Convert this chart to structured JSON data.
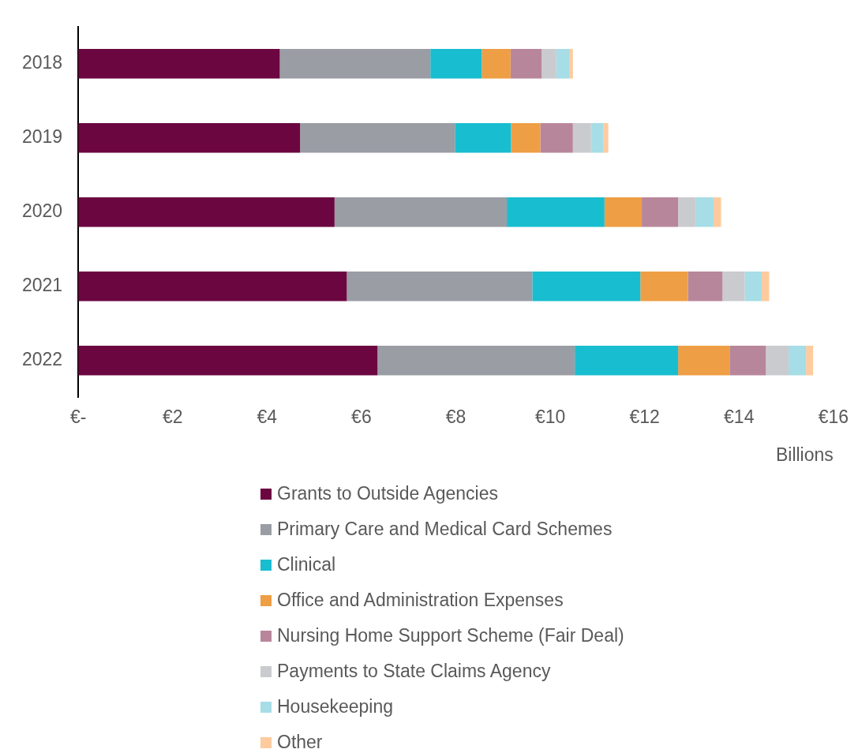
{
  "chart_data": {
    "type": "bar",
    "orientation": "horizontal",
    "stacked": true,
    "xlabel": "Billions",
    "categories": [
      "2018",
      "2019",
      "2020",
      "2021",
      "2022"
    ],
    "series": [
      {
        "name": "Grants to Outside Agencies",
        "color": "#6b0641",
        "values": [
          4.27,
          4.7,
          5.43,
          5.69,
          6.34
        ]
      },
      {
        "name": "Primary Care and Medical Card Schemes",
        "color": "#9a9da4",
        "values": [
          3.19,
          3.28,
          3.65,
          3.93,
          4.18
        ]
      },
      {
        "name": "Clinical",
        "color": "#19bdd0",
        "values": [
          1.09,
          1.19,
          2.07,
          2.29,
          2.19
        ]
      },
      {
        "name": "Office and Administration Expenses",
        "color": "#ee9e45",
        "values": [
          0.61,
          0.62,
          0.79,
          1.01,
          1.09
        ]
      },
      {
        "name": "Nursing Home Support Scheme (Fair Deal)",
        "color": "#b8869b",
        "values": [
          0.66,
          0.69,
          0.77,
          0.73,
          0.77
        ]
      },
      {
        "name": "Payments to State Claims Agency",
        "color": "#cacbcf",
        "values": [
          0.31,
          0.38,
          0.38,
          0.47,
          0.48
        ]
      },
      {
        "name": "Housekeeping",
        "color": "#a6dde6",
        "values": [
          0.27,
          0.27,
          0.37,
          0.36,
          0.37
        ]
      },
      {
        "name": "Other",
        "color": "#fecb9e",
        "values": [
          0.08,
          0.1,
          0.16,
          0.16,
          0.15
        ]
      }
    ],
    "xlim": [
      0,
      16
    ],
    "xticks": [
      {
        "value": 0,
        "label": "€-"
      },
      {
        "value": 2,
        "label": "€2"
      },
      {
        "value": 4,
        "label": "€4"
      },
      {
        "value": 6,
        "label": "€6"
      },
      {
        "value": 8,
        "label": "€8"
      },
      {
        "value": 10,
        "label": "€10"
      },
      {
        "value": 12,
        "label": "€12"
      },
      {
        "value": 14,
        "label": "€14"
      },
      {
        "value": 16,
        "label": "€16"
      }
    ],
    "grid": false,
    "legend": "bottom"
  }
}
